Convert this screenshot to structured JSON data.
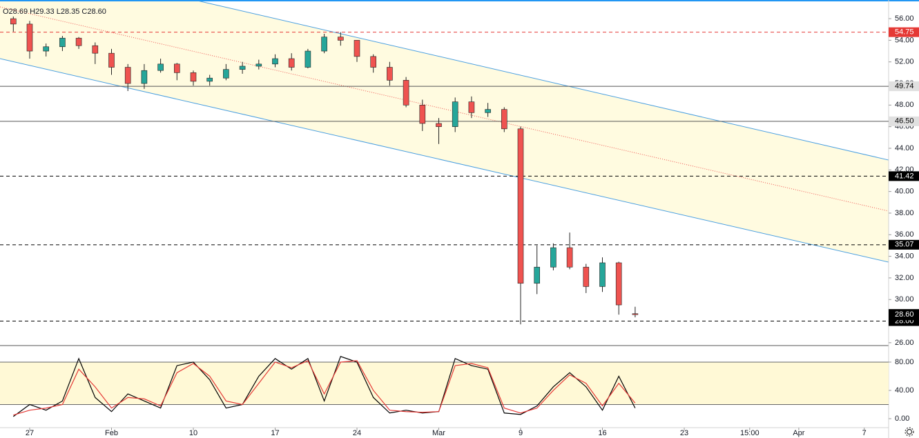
{
  "chart_data": [
    {
      "type": "candlestick",
      "header": [
        "O28.69",
        "H29.33",
        "L28.35",
        "C28.60"
      ],
      "categories": [
        null,
        "27",
        null,
        null,
        null,
        null,
        "Feb",
        null,
        null,
        null,
        null,
        "10",
        null,
        null,
        null,
        null,
        "17",
        null,
        null,
        null,
        null,
        "24",
        null,
        null,
        null,
        null,
        "Mar",
        null,
        null,
        null,
        null,
        "9",
        null,
        null,
        null,
        null,
        "16",
        null,
        null,
        null,
        null,
        "23",
        null,
        null,
        null,
        "15:00",
        null,
        null,
        "Apr",
        null,
        null,
        null,
        "7",
        null
      ],
      "open": [
        56.0,
        55.5,
        53.0,
        53.4,
        54.2,
        53.5,
        52.8,
        51.5,
        50.0,
        51.2,
        51.8,
        51.0,
        50.2,
        50.5,
        51.3,
        51.6,
        51.8,
        52.3,
        51.5,
        53.0,
        54.3,
        54.0,
        52.5,
        51.5,
        50.3,
        48.0,
        46.3,
        46.0,
        48.3,
        47.3,
        47.6,
        45.8,
        31.5,
        33.0,
        34.8,
        33.0,
        31.2,
        33.4,
        28.69,
        null,
        null,
        null,
        null,
        null,
        null,
        null,
        null,
        null,
        null,
        null,
        null,
        null,
        null,
        null
      ],
      "high": [
        56.2,
        55.8,
        53.7,
        54.4,
        54.3,
        53.8,
        53.2,
        51.8,
        51.8,
        52.3,
        51.9,
        51.2,
        50.8,
        51.8,
        52.0,
        52.2,
        52.7,
        52.8,
        53.2,
        54.6,
        54.75,
        54.0,
        52.7,
        52.0,
        50.6,
        48.5,
        46.8,
        48.7,
        48.8,
        48.2,
        47.8,
        46.0,
        35.0,
        35.2,
        36.2,
        33.3,
        33.9,
        33.5,
        29.33,
        null,
        null,
        null,
        null,
        null,
        null,
        null,
        null,
        null,
        null,
        null,
        null,
        null,
        null,
        null
      ],
      "low": [
        54.8,
        52.3,
        52.5,
        53.0,
        53.2,
        51.8,
        50.8,
        49.3,
        49.5,
        51.0,
        50.3,
        49.8,
        49.8,
        50.3,
        50.9,
        51.3,
        51.5,
        51.2,
        51.4,
        52.8,
        53.5,
        52.0,
        51.0,
        49.8,
        47.8,
        45.6,
        44.4,
        45.5,
        46.8,
        46.9,
        45.5,
        27.7,
        30.5,
        32.7,
        32.8,
        30.6,
        30.7,
        28.6,
        28.35,
        null,
        null,
        null,
        null,
        null,
        null,
        null,
        null,
        null,
        null,
        null,
        null,
        null,
        null,
        null
      ],
      "close": [
        55.5,
        53.0,
        53.4,
        54.2,
        53.5,
        52.8,
        51.5,
        50.0,
        51.2,
        51.8,
        51.0,
        50.2,
        50.5,
        51.3,
        51.6,
        51.8,
        52.3,
        51.5,
        53.0,
        54.3,
        54.0,
        52.5,
        51.5,
        50.3,
        48.0,
        46.3,
        46.0,
        48.3,
        47.3,
        47.6,
        45.8,
        31.5,
        33.0,
        34.8,
        33.0,
        31.2,
        33.4,
        29.5,
        28.6,
        null,
        null,
        null,
        null,
        null,
        null,
        null,
        null,
        null,
        null,
        null,
        null,
        null,
        null,
        null
      ],
      "up_color": "#26a69a",
      "down_color": "#ef5350",
      "ylim": [
        25.8,
        57.6
      ],
      "yticks": [
        {
          "value": 26,
          "label": "26.00"
        },
        {
          "value": 28,
          "label": "28.00"
        },
        {
          "value": 30,
          "label": "30.00"
        },
        {
          "value": 32,
          "label": "32.00"
        },
        {
          "value": 34,
          "label": "34.00"
        },
        {
          "value": 36,
          "label": "36.00"
        },
        {
          "value": 38,
          "label": "38.00"
        },
        {
          "value": 40,
          "label": "40.00"
        },
        {
          "value": 42,
          "label": "42.00"
        },
        {
          "value": 44,
          "label": "44.00"
        },
        {
          "value": 46,
          "label": "46.00"
        },
        {
          "value": 48,
          "label": "48.00"
        },
        {
          "value": 50,
          "label": "50.00"
        },
        {
          "value": 52,
          "label": "52.00"
        },
        {
          "value": 54,
          "label": "54.00"
        },
        {
          "value": 56,
          "label": "56.00"
        }
      ],
      "levels": [
        {
          "value": 54.75,
          "label": "54.75",
          "color": "#e53935",
          "text_color": "#ffffff",
          "style": "dashed"
        },
        {
          "value": 49.74,
          "label": "49.74",
          "color": "#e0e0e0",
          "text_color": "#000000",
          "style": "solid"
        },
        {
          "value": 46.5,
          "label": "46.50",
          "color": "#e0e0e0",
          "text_color": "#000000",
          "style": "solid"
        },
        {
          "value": 41.42,
          "label": "41.42",
          "color": "#000000",
          "text_color": "#ffffff",
          "style": "dashed"
        },
        {
          "value": 35.07,
          "label": "35.07",
          "color": "#000000",
          "text_color": "#ffffff",
          "style": "dashed"
        },
        {
          "value": 28.0,
          "label": "28.00",
          "color": "#000000",
          "text_color": "#ffffff",
          "style": "dashed"
        }
      ],
      "last_price": {
        "value": 28.6,
        "label": "28.60"
      }
    },
    {
      "type": "line",
      "series": [
        {
          "color": "#000000",
          "values": [
            3,
            20,
            12,
            25,
            85,
            30,
            10,
            35,
            25,
            15,
            75,
            80,
            55,
            15,
            20,
            60,
            85,
            70,
            85,
            25,
            88,
            80,
            30,
            8,
            12,
            8,
            10,
            85,
            75,
            70,
            8,
            6,
            18,
            45,
            65,
            45,
            12,
            60,
            15,
            null,
            null,
            null,
            null,
            null,
            null,
            null,
            null,
            null,
            null,
            null,
            null,
            null,
            null,
            null
          ]
        },
        {
          "color": "#e53935",
          "values": [
            5,
            12,
            15,
            20,
            70,
            45,
            15,
            30,
            28,
            18,
            65,
            78,
            60,
            25,
            20,
            50,
            80,
            72,
            82,
            35,
            80,
            82,
            40,
            12,
            10,
            9,
            10,
            75,
            78,
            72,
            15,
            8,
            15,
            40,
            62,
            50,
            18,
            50,
            22,
            null,
            null,
            null,
            null,
            null,
            null,
            null,
            null,
            null,
            null,
            null,
            null,
            null,
            null,
            null
          ]
        }
      ],
      "ylim": [
        -12.7,
        102.4
      ],
      "yticks": [
        {
          "value": 0,
          "label": "0.00"
        },
        {
          "value": 40,
          "label": "40.00"
        },
        {
          "value": 80,
          "label": "80.00"
        }
      ],
      "band": [
        20,
        80
      ],
      "band_color": "#fff9d6"
    }
  ]
}
